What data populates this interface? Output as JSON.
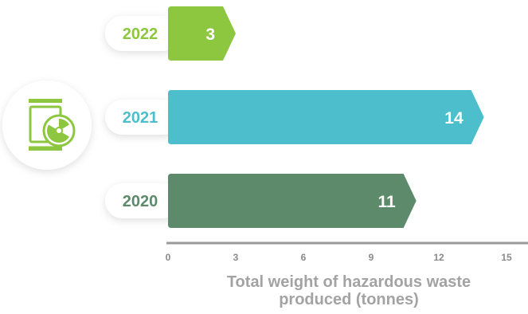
{
  "chart_data": {
    "type": "bar",
    "orientation": "horizontal",
    "categories": [
      "2022",
      "2021",
      "2020"
    ],
    "values": [
      3,
      14,
      11
    ],
    "value_labels": [
      "3",
      "14",
      "11"
    ],
    "colors": [
      "#8DC63F",
      "#4DBFCC",
      "#5C8A6B"
    ],
    "xlabel": "Total weight of hazardous waste produced (tonnes)",
    "xticks": [
      0,
      3,
      6,
      9,
      12,
      15
    ],
    "xtick_labels": [
      "0",
      "3",
      "6",
      "9",
      "12",
      "15"
    ],
    "xlim": [
      0,
      15
    ],
    "grid": false
  },
  "icon": {
    "name": "hazardous-waste-barrel-icon",
    "color": "#8DC63F"
  }
}
